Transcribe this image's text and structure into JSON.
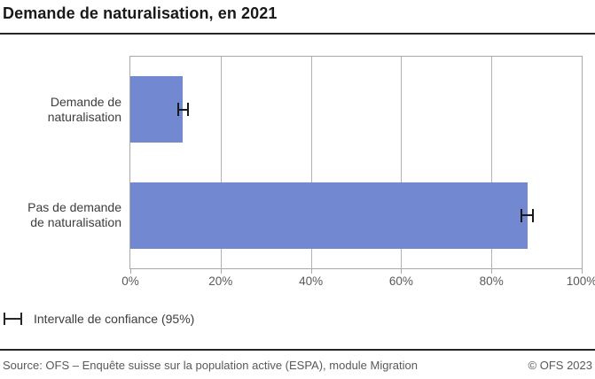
{
  "title": "Demande de naturalisation, en 2021",
  "legend": {
    "label": "Intervalle de confiance (95%)",
    "symbol": "error-bar-icon"
  },
  "footer": {
    "source": "Source: OFS – Enquête suisse sur la population active (ESPA), module Migration",
    "copyright": "© OFS 2023"
  },
  "colors": {
    "bar": "#7289d1",
    "grid": "#b3b3b3",
    "plot_border": "#a9a9a9",
    "error_bar": "#1a1a1a",
    "rule": "#262626",
    "title_text": "#191919",
    "category_text": "#3d3d3d",
    "tick_text": "#595959",
    "footer_text": "#595959"
  },
  "chart_data": {
    "type": "bar",
    "orientation": "horizontal",
    "title": "Demande de naturalisation, en 2021",
    "categories": [
      "Demande de\nnaturalisation",
      "Pas de demande\nde naturalisation"
    ],
    "values": [
      11.5,
      88
    ],
    "confidence_intervals": [
      [
        10.4,
        12.9
      ],
      [
        86.4,
        89.4
      ]
    ],
    "confidence_level": "95%",
    "xticks": [
      "0%",
      "20%",
      "40%",
      "60%",
      "80%",
      "100%"
    ],
    "xtick_values": [
      0,
      20,
      40,
      60,
      80,
      100
    ],
    "xlim": [
      0,
      100
    ],
    "xlabel": "",
    "ylabel": "",
    "grid": true,
    "legend_position": "bottom-left"
  }
}
